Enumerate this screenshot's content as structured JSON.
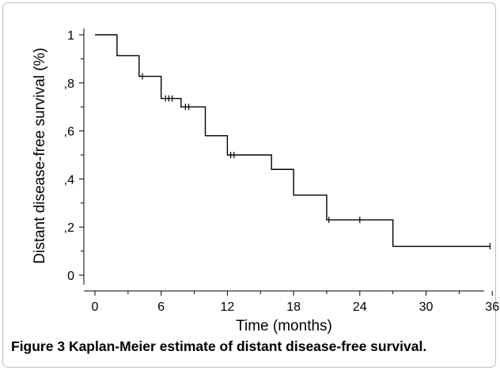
{
  "chart_data": {
    "type": "line",
    "step": true,
    "title": "",
    "xlabel": "Time (months)",
    "ylabel": "Distant disease-free survival (%)",
    "xlim": [
      -2,
      40
    ],
    "ylim": [
      -0.04,
      1.04
    ],
    "xticks": [
      0,
      6,
      12,
      18,
      24,
      30,
      36
    ],
    "xtick_labels": [
      "0",
      "6",
      "12",
      "18",
      "24",
      "30",
      "36"
    ],
    "yticks": [
      0,
      0.2,
      0.4,
      0.6,
      0.8,
      1
    ],
    "ytick_labels": [
      "0",
      ",2",
      ",4",
      ",6",
      ",8",
      "1"
    ],
    "grid": false,
    "series": [
      {
        "steps": [
          [
            0,
            1.0
          ],
          [
            2,
            0.913
          ],
          [
            4,
            0.827
          ],
          [
            6,
            0.735
          ],
          [
            7.8,
            0.7
          ],
          [
            10,
            0.58
          ],
          [
            12,
            0.5
          ],
          [
            16,
            0.44
          ],
          [
            18,
            0.333
          ],
          [
            21,
            0.23
          ],
          [
            27,
            0.12
          ],
          [
            35.8,
            0.12
          ]
        ],
        "censored": [
          [
            4.3,
            0.827
          ],
          [
            6.4,
            0.735
          ],
          [
            6.7,
            0.735
          ],
          [
            7.0,
            0.735
          ],
          [
            8.2,
            0.7
          ],
          [
            8.5,
            0.7
          ],
          [
            12.3,
            0.5
          ],
          [
            12.6,
            0.5
          ],
          [
            21.2,
            0.23
          ],
          [
            24.0,
            0.23
          ],
          [
            35.8,
            0.12
          ]
        ]
      }
    ]
  },
  "caption": {
    "label": "Figure 3",
    "text": " Kaplan-Meier estimate of distant disease-free survival."
  }
}
